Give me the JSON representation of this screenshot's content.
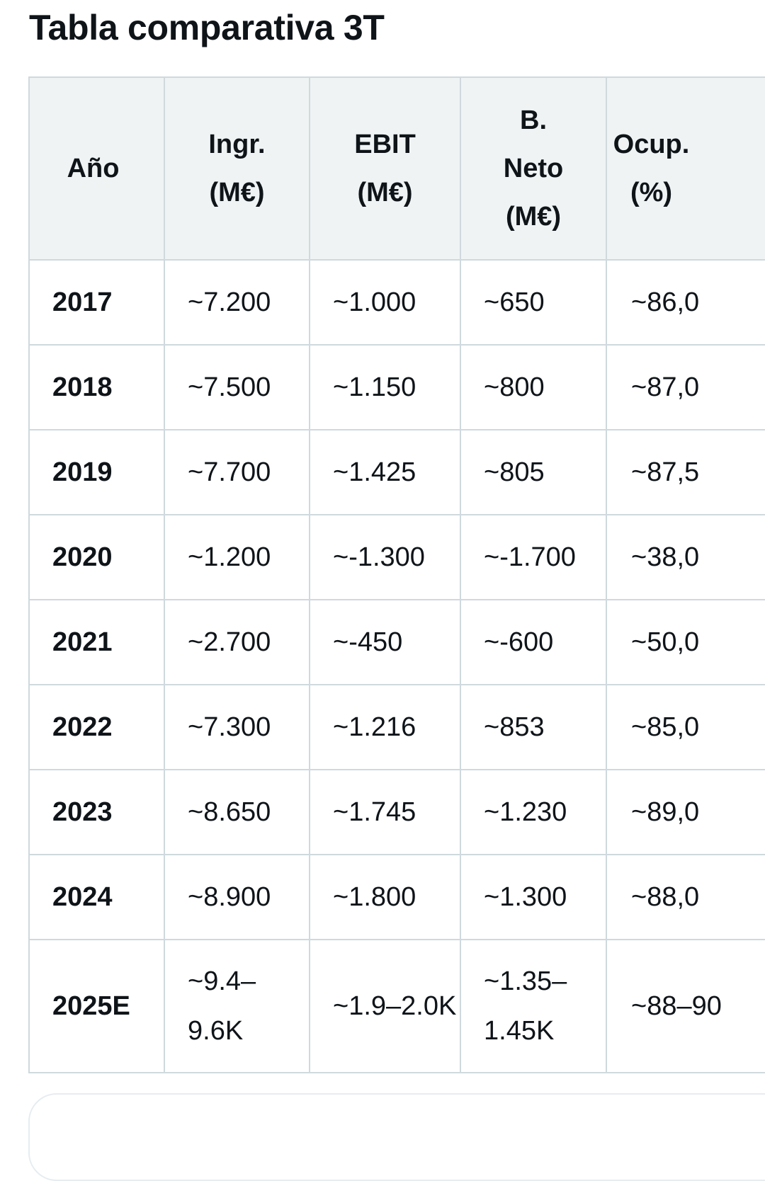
{
  "title": "Tabla comparativa 3T",
  "table": {
    "headers": [
      [
        "Año"
      ],
      [
        "Ingr.",
        "(M€)"
      ],
      [
        "EBIT",
        "(M€)"
      ],
      [
        "B.",
        "Neto",
        "(M€)"
      ],
      [
        "Ocup.",
        "(%)"
      ]
    ],
    "rows": [
      [
        "2017",
        "~7.200",
        "~1.000",
        "~650",
        "~86,0"
      ],
      [
        "2018",
        "~7.500",
        "~1.150",
        "~800",
        "~87,0"
      ],
      [
        "2019",
        "~7.700",
        "~1.425",
        "~805",
        "~87,5"
      ],
      [
        "2020",
        "~1.200",
        "~-1.300",
        "~-1.700",
        "~38,0"
      ],
      [
        "2021",
        "~2.700",
        "~-450",
        "~-600",
        "~50,0"
      ],
      [
        "2022",
        "~7.300",
        "~1.216",
        "~853",
        "~85,0"
      ],
      [
        "2023",
        "~8.650",
        "~1.745",
        "~1.230",
        "~89,0"
      ],
      [
        "2024",
        "~8.900",
        "~1.800",
        "~1.300",
        "~88,0"
      ],
      [
        "2025E",
        "~9.4–9.6K",
        "~1.9–2.0K",
        "~1.35–1.45K",
        "~88–90"
      ]
    ]
  },
  "colors": {
    "header_bg": "#eff3f4",
    "border": "#cfd9de",
    "text": "#0f1419"
  }
}
